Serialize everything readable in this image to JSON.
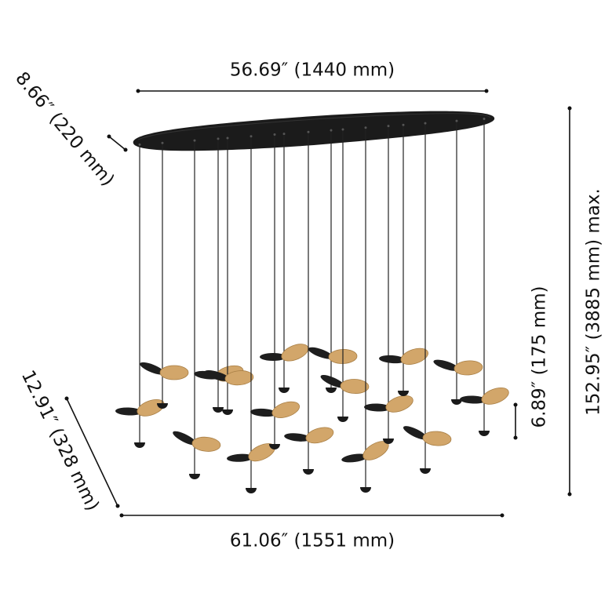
{
  "dimensions": {
    "top_width": "56.69″ (1440 mm)",
    "canopy_depth": "8.66″ (220 mm)",
    "overall_height": "152.95″ (3885 mm) max.",
    "pendant_height": "6.89″ (175 mm)",
    "bottom_depth": "12.91″ (328 mm)",
    "bottom_width": "61.06″ (1551 mm)"
  }
}
